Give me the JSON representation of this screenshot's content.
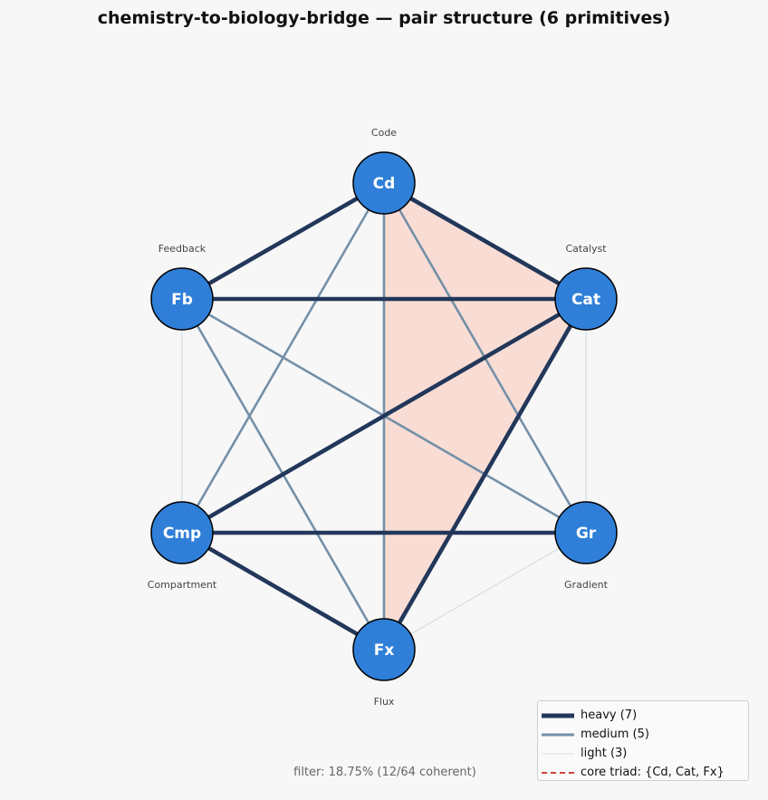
{
  "title": "chemistry-to-biology-bridge — pair structure  (6 primitives)",
  "nodes": [
    {
      "id": "Cd",
      "name": "Code"
    },
    {
      "id": "Fb",
      "name": "Feedback"
    },
    {
      "id": "Cat",
      "name": "Catalyst"
    },
    {
      "id": "Cmp",
      "name": "Compartment"
    },
    {
      "id": "Gr",
      "name": "Gradient"
    },
    {
      "id": "Fx",
      "name": "Flux"
    }
  ],
  "edges": [
    {
      "from": "Cd",
      "to": "Fb",
      "weight": "heavy"
    },
    {
      "from": "Cd",
      "to": "Cat",
      "weight": "heavy"
    },
    {
      "from": "Fb",
      "to": "Cat",
      "weight": "heavy"
    },
    {
      "from": "Cat",
      "to": "Cmp",
      "weight": "heavy"
    },
    {
      "from": "Cat",
      "to": "Fx",
      "weight": "heavy"
    },
    {
      "from": "Cmp",
      "to": "Gr",
      "weight": "heavy"
    },
    {
      "from": "Cmp",
      "to": "Fx",
      "weight": "heavy"
    },
    {
      "from": "Cd",
      "to": "Cmp",
      "weight": "medium"
    },
    {
      "from": "Cd",
      "to": "Fx",
      "weight": "medium"
    },
    {
      "from": "Cd",
      "to": "Gr",
      "weight": "medium"
    },
    {
      "from": "Fb",
      "to": "Fx",
      "weight": "medium"
    },
    {
      "from": "Fb",
      "to": "Gr",
      "weight": "medium"
    },
    {
      "from": "Fb",
      "to": "Cmp",
      "weight": "light"
    },
    {
      "from": "Cat",
      "to": "Gr",
      "weight": "light"
    },
    {
      "from": "Gr",
      "to": "Fx",
      "weight": "light"
    }
  ],
  "core_triad": [
    "Cd",
    "Cat",
    "Fx"
  ],
  "colors": {
    "node_fill": "#2f7fd8",
    "heavy": "#22375a",
    "medium": "#7590a8",
    "light": "#d5dde6",
    "triad_fill": "#f9ddd4",
    "triad_line": "#c9433a"
  },
  "legend": {
    "heavy": "heavy (7)",
    "medium": "medium (5)",
    "light": "light (3)",
    "triad": "core triad: {Cd, Cat, Fx}"
  },
  "footer": "filter: 18.75%  (12/64 coherent)"
}
